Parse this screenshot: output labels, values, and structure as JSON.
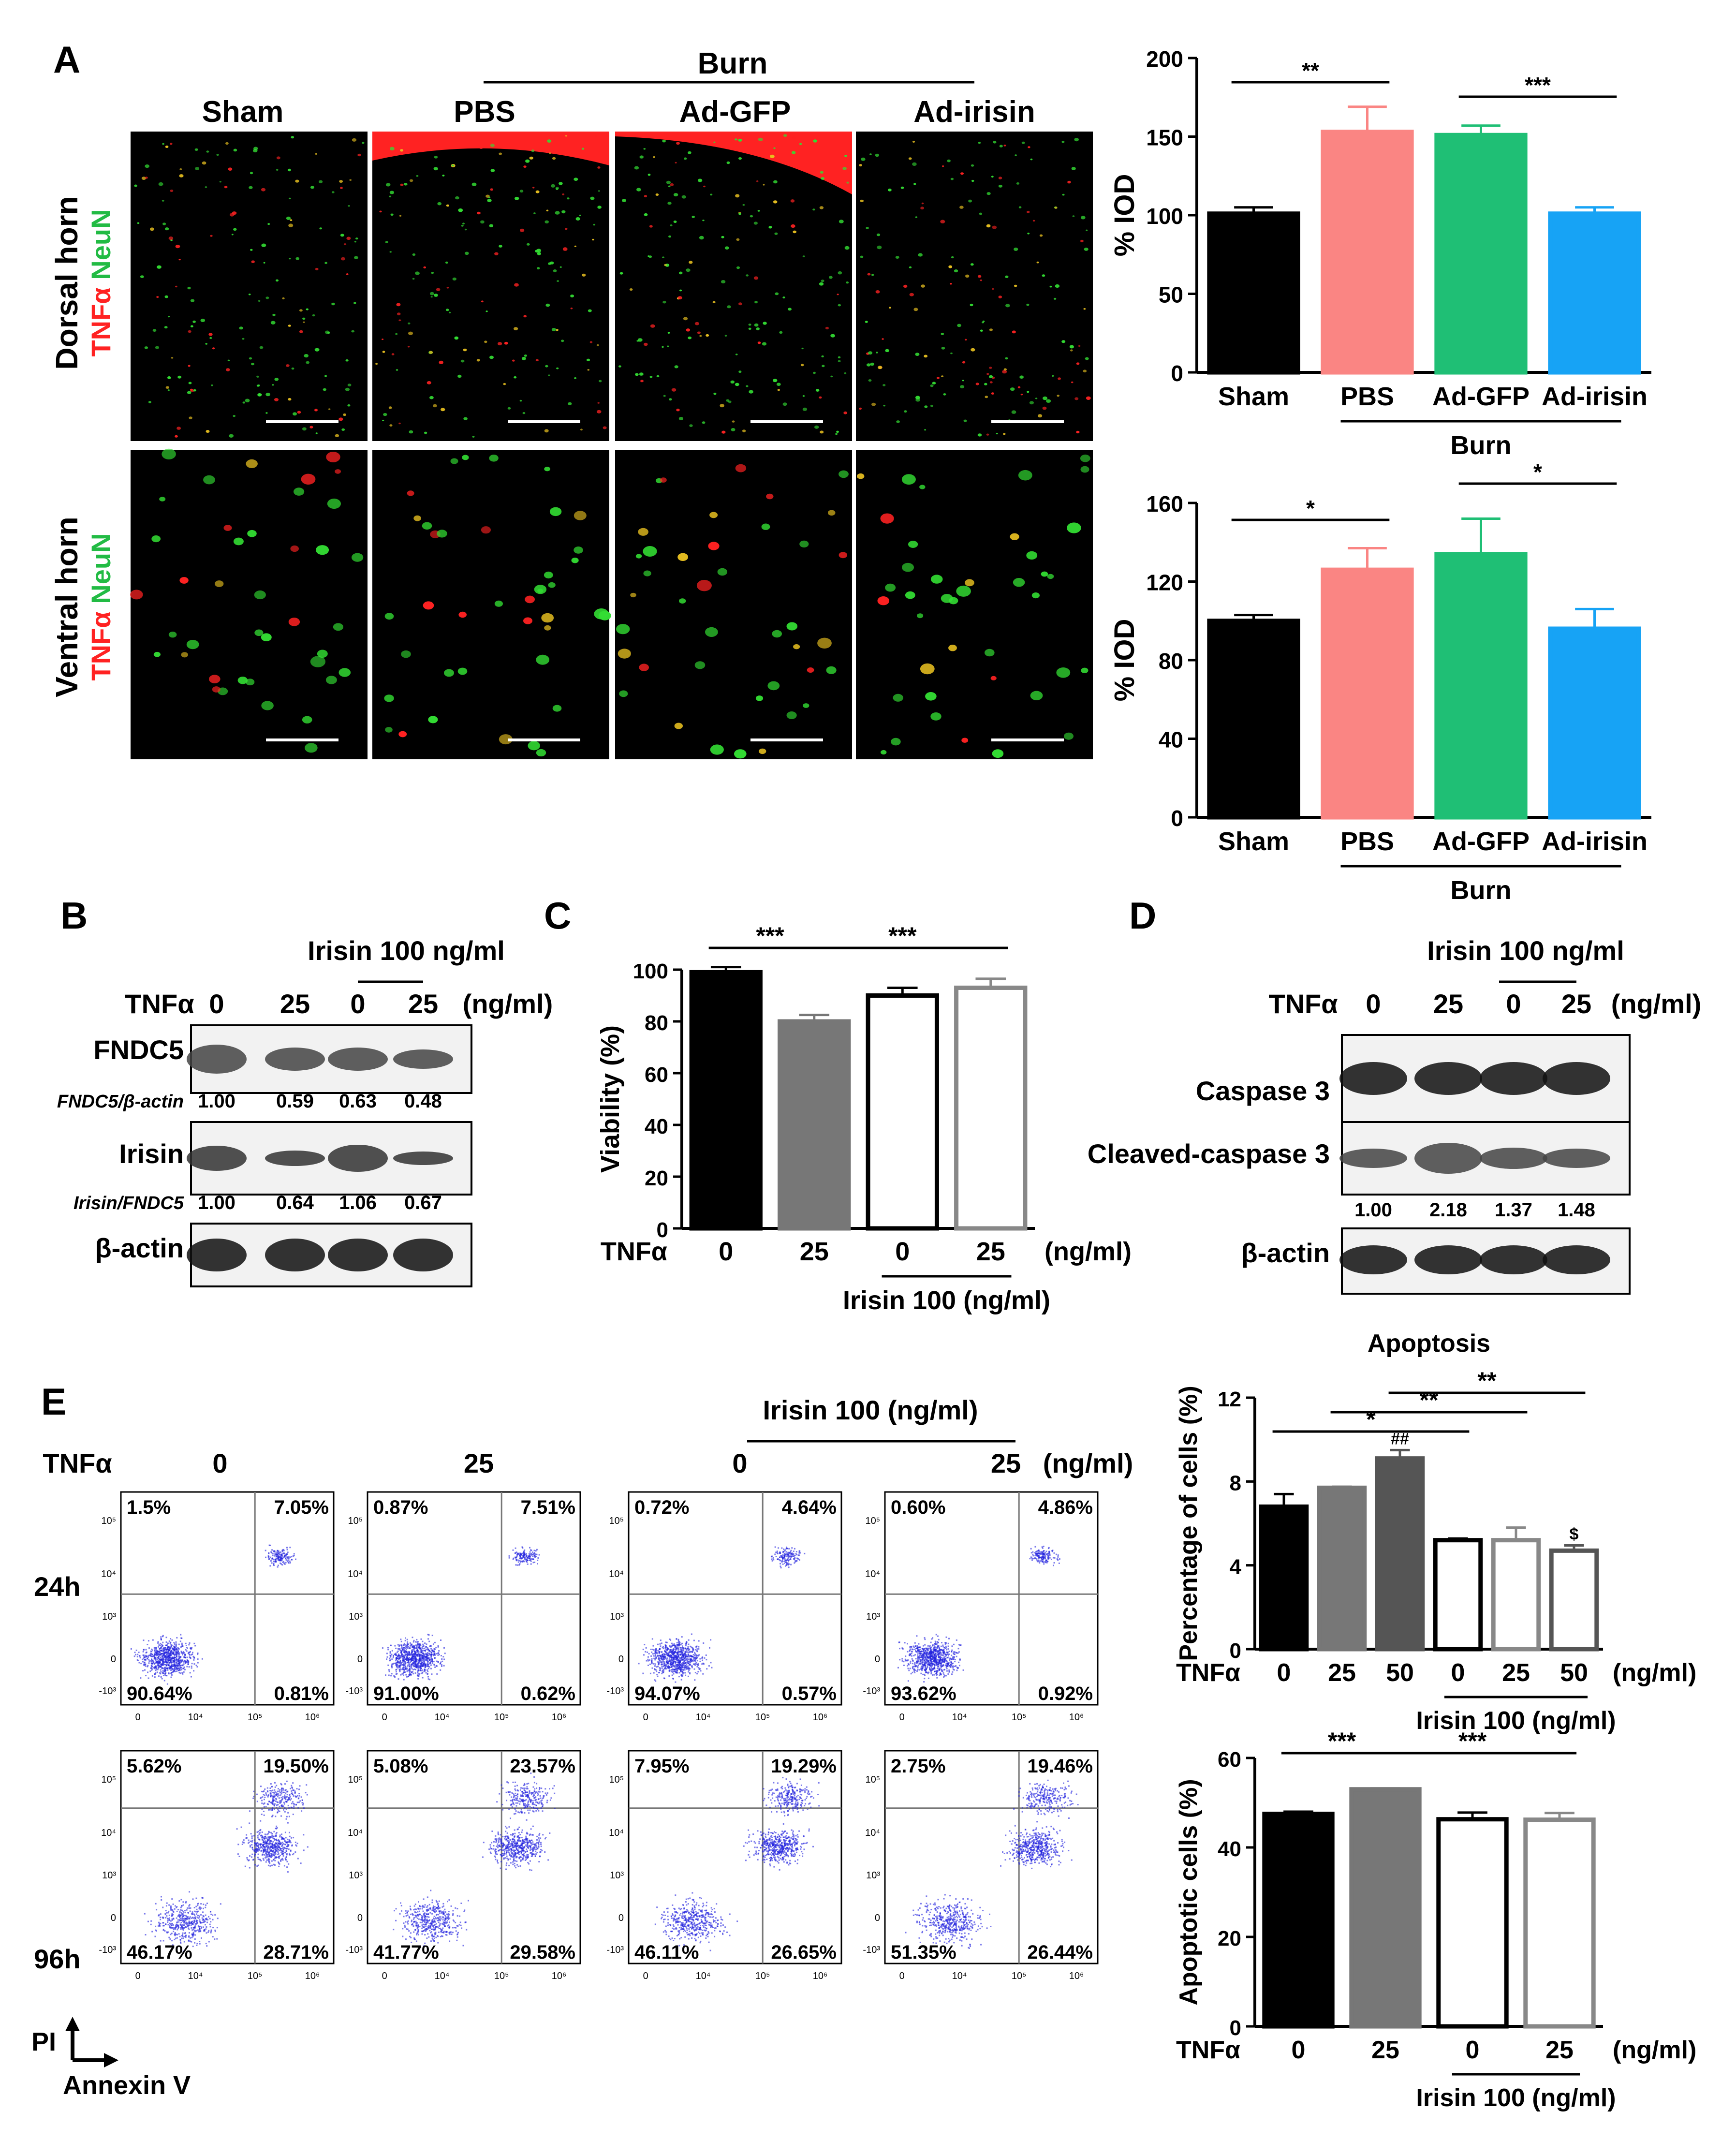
{
  "panelA": {
    "letter": "A",
    "burn_label": "Burn",
    "columns": [
      "Sham",
      "PBS",
      "Ad-GFP",
      "Ad-irisin"
    ],
    "rows": [
      {
        "region": "Dorsal horn",
        "stain1": "TNFα",
        "stain2": "NeuN"
      },
      {
        "region": "Ventral horn",
        "stain1": "TNFα",
        "stain2": "NeuN"
      }
    ],
    "colors": {
      "tnf": "#ff2222",
      "neun": "#33dd33"
    }
  },
  "panelB": {
    "letter": "B",
    "irisin_label": "Irisin 100 ng/ml",
    "tnf_label": "TNFα",
    "doses": [
      "0",
      "25",
      "0",
      "25"
    ],
    "unit": "(ng/ml)",
    "blots": [
      {
        "name": "FNDC5",
        "ratio_label": "FNDC5/β-actin",
        "ratios": [
          "1.00",
          "0.59",
          "0.63",
          "0.48"
        ]
      },
      {
        "name": "Irisin",
        "ratio_label": "Irisin/FNDC5",
        "ratios": [
          "1.00",
          "0.64",
          "1.06",
          "0.67"
        ]
      },
      {
        "name": "β-actin",
        "ratio_label": "",
        "ratios": []
      }
    ]
  },
  "panelD": {
    "letter": "D",
    "irisin_label": "Irisin 100 ng/ml",
    "tnf_label": "TNFα",
    "doses": [
      "0",
      "25",
      "0",
      "25"
    ],
    "unit": "(ng/ml)",
    "blots": [
      {
        "name": "Caspase 3",
        "ratios": []
      },
      {
        "name": "Cleaved-caspase 3",
        "ratios": [
          "1.00",
          "2.18",
          "1.37",
          "1.48"
        ]
      },
      {
        "name": "β-actin",
        "ratios": []
      }
    ]
  },
  "panelC": {
    "letter": "C"
  },
  "panelE": {
    "letter": "E",
    "irisin_label": "Irisin 100 (ng/ml)",
    "tnf_label": "TNFα",
    "doses": [
      "0",
      "25",
      "0",
      "25"
    ],
    "unit": "(ng/ml)",
    "rows": [
      {
        "time": "24h",
        "plots": [
          {
            "ul": "1.5%",
            "ur": "7.05%",
            "ll": "90.64%",
            "lr": "0.81%"
          },
          {
            "ul": "0.87%",
            "ur": "7.51%",
            "ll": "91.00%",
            "lr": "0.62%"
          },
          {
            "ul": "0.72%",
            "ur": "4.64%",
            "ll": "94.07%",
            "lr": "0.57%"
          },
          {
            "ul": "0.60%",
            "ur": "4.86%",
            "ll": "93.62%",
            "lr": "0.92%"
          }
        ]
      },
      {
        "time": "96h",
        "plots": [
          {
            "ul": "5.62%",
            "ur": "19.50%",
            "ll": "46.17%",
            "lr": "28.71%"
          },
          {
            "ul": "5.08%",
            "ur": "23.57%",
            "ll": "41.77%",
            "lr": "29.58%"
          },
          {
            "ul": "7.95%",
            "ur": "19.29%",
            "ll": "46.11%",
            "lr": "26.65%"
          },
          {
            "ul": "2.75%",
            "ur": "19.46%",
            "ll": "51.35%",
            "lr": "26.44%"
          }
        ]
      }
    ],
    "x_axis_label": "Annexin V",
    "y_axis_label": "PI",
    "x_ticks": [
      "0",
      "10⁴",
      "10⁵",
      "10⁶"
    ],
    "y_ticks": [
      "-10³",
      "0",
      "10³",
      "10⁴",
      "10⁵"
    ],
    "dot_color": "#2222dd"
  },
  "chart_data": [
    {
      "id": "A-dorsal",
      "type": "bar",
      "categories": [
        "Sham",
        "PBS",
        "Ad-GFP",
        "Ad-irisin"
      ],
      "values": [
        101,
        153,
        151,
        101
      ],
      "errors": [
        4,
        16,
        6,
        4
      ],
      "ylabel": "% IOD",
      "ylim": [
        0,
        200
      ],
      "yticks": [
        "0",
        "50",
        "100",
        "150",
        "200"
      ],
      "group_label": "Burn",
      "colors": [
        "#000000",
        "#fa8583",
        "#1fbf75",
        "#17a3f5"
      ],
      "significance": [
        {
          "from": 0,
          "to": 1,
          "label": "**"
        },
        {
          "from": 2,
          "to": 3,
          "label": "***"
        }
      ]
    },
    {
      "id": "A-ventral",
      "type": "bar",
      "categories": [
        "Sham",
        "PBS",
        "Ad-GFP",
        "Ad-irisin"
      ],
      "values": [
        100,
        126,
        134,
        96
      ],
      "errors": [
        3,
        11,
        18,
        10
      ],
      "ylabel": "% IOD",
      "ylim": [
        0,
        160
      ],
      "yticks": [
        "0",
        "40",
        "80",
        "120",
        "160"
      ],
      "group_label": "Burn",
      "colors": [
        "#000000",
        "#fa8583",
        "#1fbf75",
        "#17a3f5"
      ],
      "significance": [
        {
          "from": 0,
          "to": 1,
          "label": "*"
        },
        {
          "from": 2,
          "to": 3,
          "label": "*"
        }
      ]
    },
    {
      "id": "C",
      "type": "bar",
      "categories": [
        "0",
        "25",
        "0",
        "25"
      ],
      "values": [
        99,
        80,
        90,
        93
      ],
      "errors": [
        2,
        2.5,
        3,
        3.5
      ],
      "ylabel": "Viability (%)",
      "ylim": [
        0,
        100
      ],
      "yticks": [
        "0",
        "20",
        "40",
        "60",
        "80",
        "100"
      ],
      "x_prefix": "TNFα",
      "x_unit": "(ng/ml)",
      "group_label": "Irisin 100 (ng/ml)",
      "styles": [
        "#000000|#000000",
        "#777777|#777777",
        "#ffffff|#000000",
        "#ffffff|#888888"
      ],
      "significance": [
        {
          "from": 0,
          "to": 1,
          "label": "***"
        },
        {
          "from": 1,
          "to": 3,
          "label": "***"
        }
      ]
    },
    {
      "id": "E-apoptosis-24h",
      "type": "bar",
      "title": "Apoptosis",
      "categories": [
        "0",
        "25",
        "50",
        "0",
        "25",
        "50"
      ],
      "values": [
        6.8,
        7.7,
        9.1,
        5.2,
        5.2,
        4.7
      ],
      "errors": [
        0.6,
        0.05,
        0.4,
        0.08,
        0.6,
        0.25
      ],
      "ylabel": "Percentage of cells (%)",
      "ylim": [
        0,
        12
      ],
      "yticks": [
        "0",
        "4",
        "8",
        "12"
      ],
      "x_prefix": "TNFα",
      "x_unit": "(ng/ml)",
      "group_label": "Irisin 100 (ng/ml)",
      "styles": [
        "#000000|#000000",
        "#777777|#777777",
        "#555555|#555555",
        "#ffffff|#000000",
        "#ffffff|#888888",
        "#ffffff|#555555"
      ],
      "marks": [
        {
          "bar": 2,
          "label": "##"
        },
        {
          "bar": 5,
          "label": "$"
        }
      ],
      "significance": [
        {
          "from": 0,
          "to": 3,
          "label": "*"
        },
        {
          "from": 1,
          "to": 4,
          "label": "**"
        },
        {
          "from": 2,
          "to": 5,
          "label": "**"
        }
      ]
    },
    {
      "id": "E-apoptotic-96h",
      "type": "bar",
      "categories": [
        "0",
        "25",
        "0",
        "25"
      ],
      "values": [
        47.5,
        53,
        46.3,
        46.2
      ],
      "errors": [
        0.5,
        0.2,
        1.5,
        1.5
      ],
      "ylabel": "Apoptotic cells (%)",
      "ylim": [
        0,
        60
      ],
      "yticks": [
        "0",
        "20",
        "40",
        "60"
      ],
      "x_prefix": "TNFα",
      "x_unit": "(ng/ml)",
      "group_label": "Irisin 100 (ng/ml)",
      "styles": [
        "#000000|#000000",
        "#777777|#777777",
        "#ffffff|#000000",
        "#ffffff|#888888"
      ],
      "significance": [
        {
          "from": 0,
          "to": 1,
          "label": "***"
        },
        {
          "from": 1,
          "to": 3,
          "label": "***"
        }
      ]
    }
  ]
}
